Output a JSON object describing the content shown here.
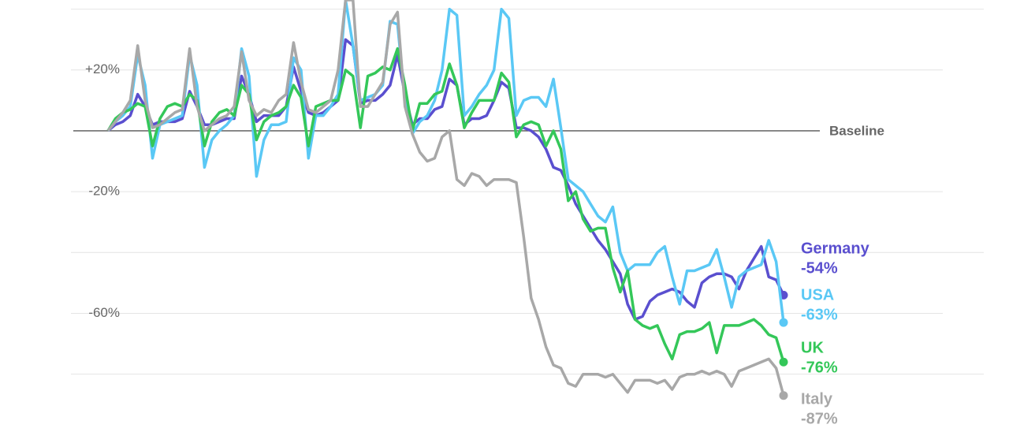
{
  "chart_data": {
    "type": "line",
    "ylim": [
      -99,
      43
    ],
    "yticks": [
      {
        "value": 40,
        "label": null
      },
      {
        "value": 20,
        "label": "+20%"
      },
      {
        "value": 0,
        "label": "Baseline"
      },
      {
        "value": -20,
        "label": "-20%"
      },
      {
        "value": -40,
        "label": null
      },
      {
        "value": -60,
        "label": "-60%"
      },
      {
        "value": -80,
        "label": null
      }
    ],
    "grid": true,
    "series": [
      {
        "name": "Germany",
        "color": "#5a4fcf",
        "end_label": "-54%",
        "values": [
          0,
          2,
          3,
          5,
          12,
          8,
          2,
          3,
          3,
          3,
          4,
          13,
          8,
          2,
          2,
          3,
          4,
          4,
          18,
          12,
          3,
          5,
          5,
          5,
          8,
          21,
          13,
          6,
          5,
          6,
          8,
          10,
          30,
          28,
          9,
          10,
          10,
          12,
          15,
          25,
          12,
          2,
          4,
          4,
          7,
          8,
          17,
          15,
          2,
          4,
          4,
          5,
          10,
          16,
          14,
          1,
          1,
          0,
          -2,
          -6,
          -12,
          -13,
          -18,
          -24,
          -28,
          -32,
          -36,
          -39,
          -43,
          -47,
          -57,
          -62,
          -61,
          -56,
          -54,
          -53,
          -52,
          -53,
          -56,
          -58,
          -50,
          -48,
          -47,
          -47,
          -48,
          -52,
          -46,
          -42,
          -38,
          -48,
          -49,
          -54
        ]
      },
      {
        "name": "USA",
        "color": "#5ac8f5",
        "end_label": "-63%",
        "values": [
          0,
          3,
          5,
          8,
          25,
          15,
          -9,
          2,
          3,
          4,
          5,
          25,
          15,
          -12,
          -3,
          0,
          2,
          5,
          27,
          18,
          -15,
          -3,
          2,
          2,
          3,
          24,
          20,
          -9,
          5,
          5,
          8,
          12,
          43,
          28,
          10,
          11,
          12,
          15,
          36,
          35,
          10,
          -1,
          3,
          5,
          10,
          20,
          40,
          38,
          5,
          8,
          12,
          15,
          20,
          40,
          37,
          5,
          10,
          11,
          11,
          8,
          17,
          1,
          -16,
          -18,
          -20,
          -24,
          -28,
          -30,
          -25,
          -40,
          -46,
          -44,
          -44,
          -44,
          -40,
          -38,
          -48,
          -57,
          -46,
          -46,
          -45,
          -44,
          -39,
          -48,
          -58,
          -48,
          -46,
          -45,
          -44,
          -36,
          -43,
          -63
        ]
      },
      {
        "name": "UK",
        "color": "#34c759",
        "end_label": "-76%",
        "values": [
          0,
          4,
          6,
          7,
          9,
          8,
          -5,
          4,
          8,
          9,
          8,
          12,
          10,
          -5,
          3,
          6,
          7,
          5,
          15,
          12,
          -3,
          3,
          5,
          6,
          8,
          15,
          11,
          -5,
          8,
          9,
          10,
          10,
          20,
          18,
          1,
          18,
          19,
          21,
          20,
          27,
          15,
          0,
          9,
          9,
          12,
          13,
          22,
          15,
          1,
          6,
          10,
          10,
          10,
          19,
          16,
          -2,
          2,
          3,
          2,
          -5,
          0,
          -6,
          -23,
          -20,
          -29,
          -33,
          -32,
          -32,
          -45,
          -53,
          -46,
          -62,
          -64,
          -65,
          -64,
          -70,
          -75,
          -67,
          -66,
          -66,
          -65,
          -63,
          -73,
          -64,
          -64,
          -64,
          -63,
          -62,
          -64,
          -67,
          -68,
          -76
        ]
      },
      {
        "name": "Italy",
        "color": "#a8a8a8",
        "end_label": "-87%",
        "values": [
          0,
          3,
          6,
          10,
          28,
          10,
          1,
          2,
          4,
          6,
          7,
          27,
          8,
          0,
          2,
          4,
          5,
          8,
          26,
          10,
          5,
          7,
          6,
          10,
          12,
          29,
          16,
          7,
          6,
          8,
          10,
          20,
          43,
          43,
          8,
          8,
          12,
          16,
          35,
          39,
          8,
          -1,
          -7,
          -10,
          -9,
          -2,
          0,
          -16,
          -18,
          -14,
          -15,
          -18,
          -16,
          -16,
          -16,
          -17,
          -35,
          -55,
          -62,
          -71,
          -77,
          -78,
          -83,
          -84,
          -80,
          -80,
          -80,
          -81,
          -80,
          -83,
          -86,
          -82,
          -82,
          -82,
          -83,
          -82,
          -85,
          -81,
          -80,
          -80,
          -79,
          -80,
          -79,
          -80,
          -84,
          -79,
          -78,
          -77,
          -76,
          -75,
          -78,
          -87
        ]
      }
    ]
  }
}
